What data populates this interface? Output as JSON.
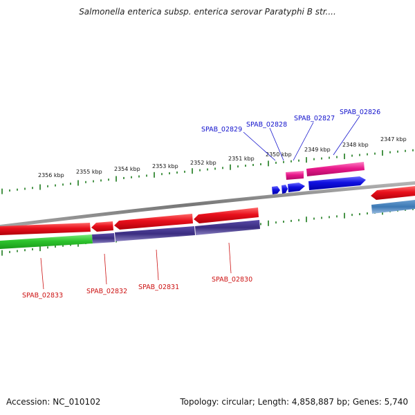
{
  "title": "Salmonella enterica subsp. enterica serovar Paratyphi B str....",
  "footer": {
    "accession": "Accession: NC_010102",
    "summary": "Topology: circular; Length: 4,858,887 bp; Genes: 5,740"
  },
  "ticks": [
    "2356 kbp",
    "2355 kbp",
    "2354 kbp",
    "2353 kbp",
    "2352 kbp",
    "2351 kbp",
    "2350 kbp",
    "2349 kbp",
    "2348 kbp",
    "2347 kbp"
  ],
  "genes_top": [
    "SPAB_02829",
    "SPAB_02828",
    "SPAB_02827",
    "SPAB_02826"
  ],
  "genes_bottom": [
    "SPAB_02833",
    "SPAB_02832",
    "SPAB_02831",
    "SPAB_02830"
  ],
  "colors": {
    "red": "#e8101c",
    "pink": "#e8188a",
    "blue": "#1010e0",
    "purple": "#3a2d80",
    "green": "#2ec42e",
    "steel": "#3c78b4",
    "backbone": "#888888",
    "tick": "#1a7a1a",
    "label_blue": "#1010cc",
    "label_red": "#cc1010"
  }
}
